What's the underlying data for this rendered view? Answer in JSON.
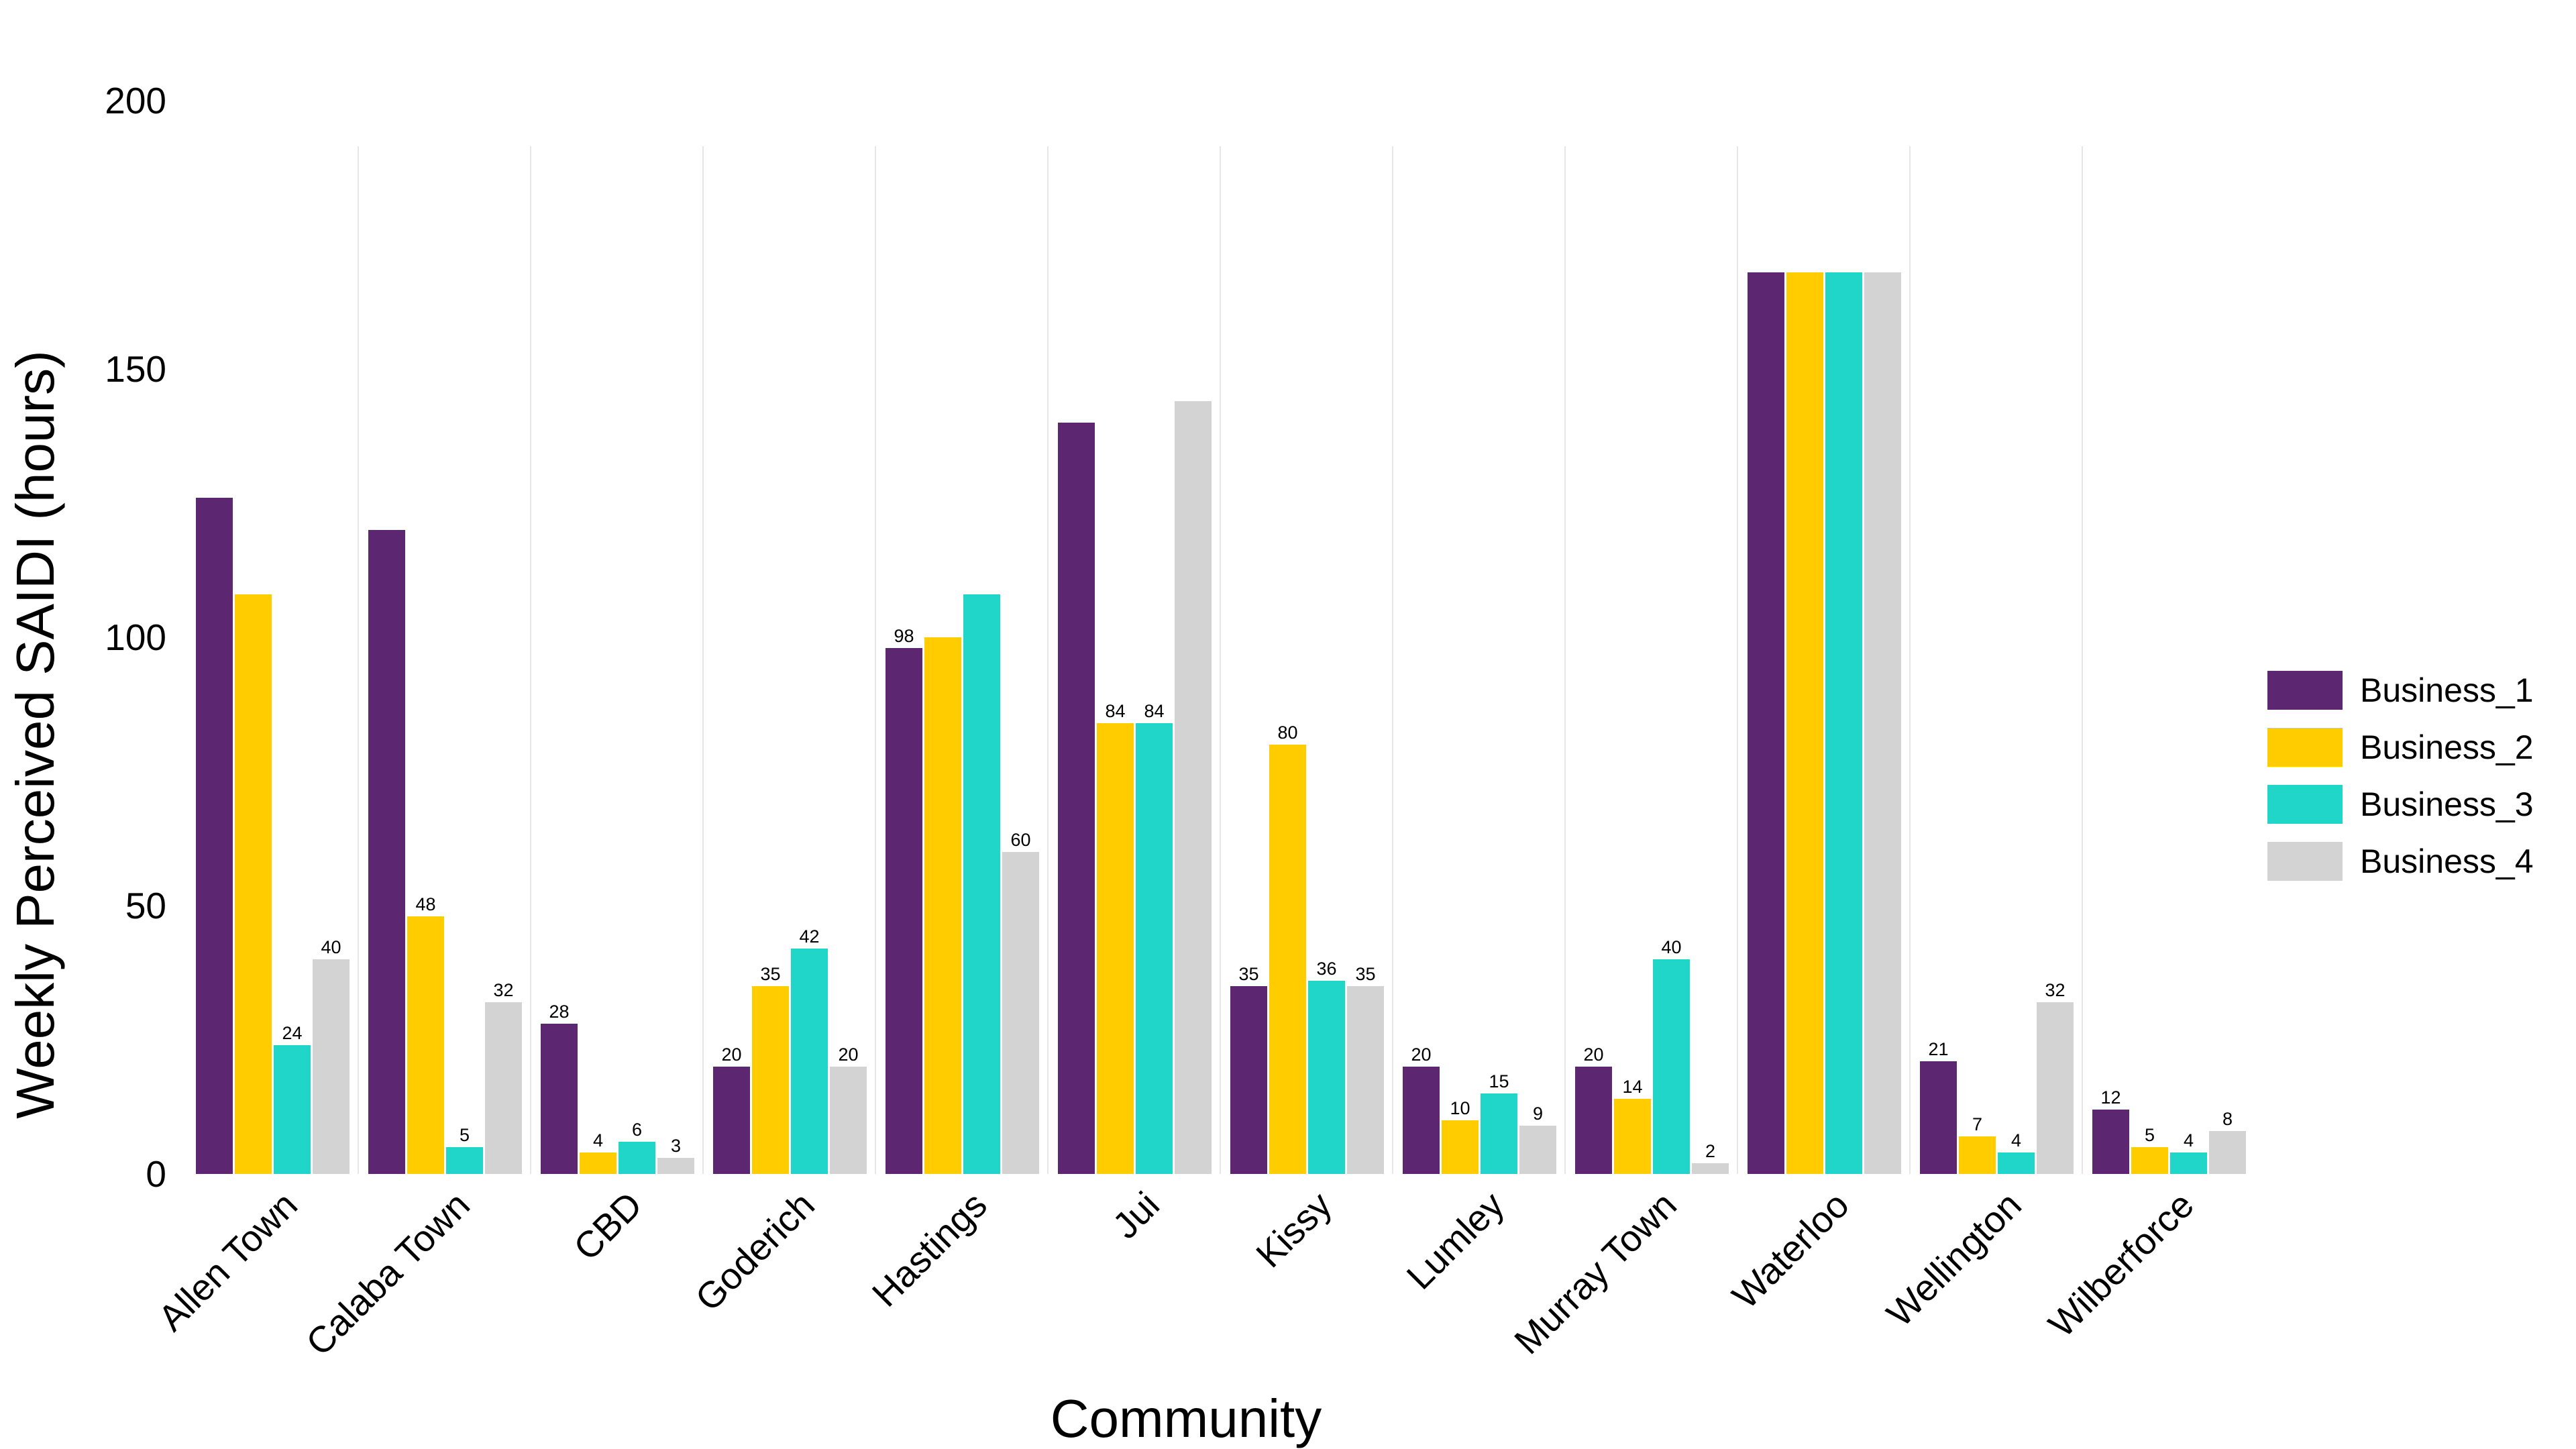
{
  "chart_data": {
    "type": "bar",
    "title": "",
    "xlabel": "Community",
    "ylabel": "Weekly Perceived SAIDI (hours)",
    "ylim": [
      0,
      200
    ],
    "yticks": [
      "0",
      "50",
      "100",
      "150",
      "200"
    ],
    "grid": "vertical",
    "legend_position": "right",
    "categories": [
      "Allen Town",
      "Calaba Town",
      "CBD",
      "Goderich",
      "Hastings",
      "Jui",
      "Kissy",
      "Lumley",
      "Murray Town",
      "Waterloo",
      "Wellington",
      "Wilberforce"
    ],
    "series": [
      {
        "name": "Business_1",
        "color": "#5c2671",
        "values": [
          126,
          120,
          28,
          20,
          98,
          140,
          35,
          20,
          20,
          168,
          21,
          12
        ],
        "labels": [
          "",
          "",
          "28",
          "20",
          "98",
          "",
          "35",
          "20",
          "20",
          "",
          "21",
          "12"
        ]
      },
      {
        "name": "Business_2",
        "color": "#ffcc00",
        "values": [
          108,
          48,
          4,
          35,
          100,
          84,
          80,
          10,
          14,
          168,
          7,
          5
        ],
        "labels": [
          "",
          "48",
          "4",
          "35",
          "",
          "84",
          "80",
          "10",
          "14",
          "",
          "7",
          "5"
        ]
      },
      {
        "name": "Business_3",
        "color": "#1fd6c8",
        "values": [
          24,
          5,
          6,
          42,
          108,
          84,
          36,
          15,
          40,
          168,
          4,
          4
        ],
        "labels": [
          "24",
          "5",
          "6",
          "42",
          "",
          "84",
          "36",
          "15",
          "40",
          "",
          "4",
          "4"
        ]
      },
      {
        "name": "Business_4",
        "color": "#d3d3d3",
        "values": [
          40,
          32,
          3,
          20,
          60,
          144,
          35,
          9,
          2,
          168,
          32,
          8
        ],
        "labels": [
          "40",
          "32",
          "3",
          "20",
          "60",
          "",
          "35",
          "9",
          "2",
          "",
          "32",
          "8"
        ]
      }
    ]
  }
}
